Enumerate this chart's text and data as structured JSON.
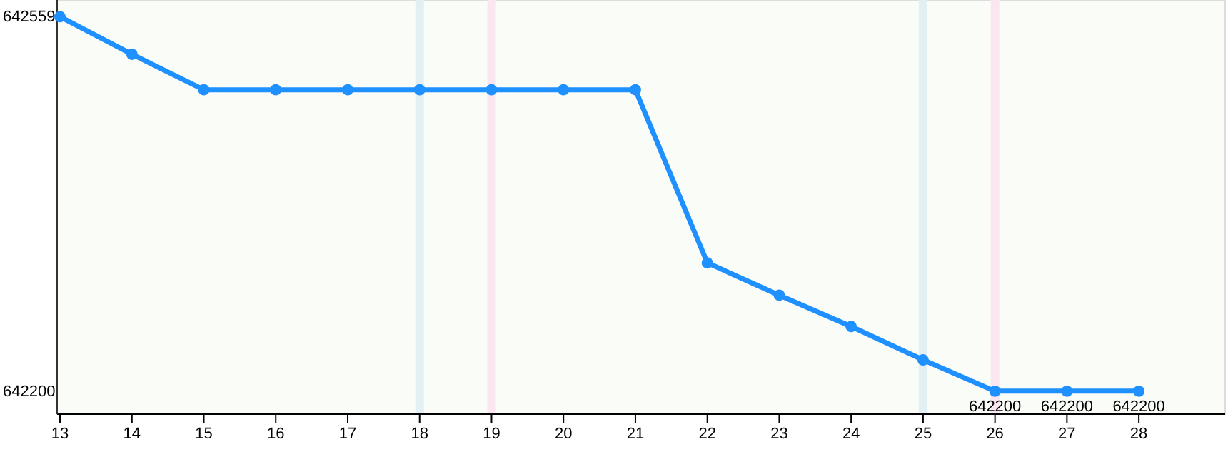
{
  "chart_data": {
    "type": "line",
    "x": [
      13,
      14,
      15,
      16,
      17,
      18,
      19,
      20,
      21,
      22,
      23,
      24,
      25,
      26,
      27,
      28
    ],
    "series": [
      {
        "color": "#1e90ff",
        "values": [
          642559,
          642523,
          642489,
          642489,
          642489,
          642489,
          642489,
          642489,
          642489,
          642323,
          642292,
          642262,
          642230,
          642200,
          642200,
          642200
        ],
        "value_labels": [
          null,
          null,
          null,
          null,
          null,
          null,
          null,
          null,
          null,
          null,
          null,
          null,
          null,
          "642200",
          "642200",
          "642200"
        ]
      }
    ],
    "xlim": [
      12.96,
      29.2
    ],
    "xticks": [
      13,
      14,
      15,
      16,
      17,
      18,
      19,
      20,
      21,
      22,
      23,
      24,
      25,
      26,
      27,
      28
    ],
    "ylim": [
      642178,
      642575
    ],
    "yticks": [
      642559,
      642200
    ],
    "marker": "circle",
    "grid": false,
    "ref_lines": [
      {
        "axis": "x",
        "value": 18,
        "color": "#e3f0f3"
      },
      {
        "axis": "x",
        "value": 19,
        "color": "#fbe6ef"
      },
      {
        "axis": "x",
        "value": 25,
        "color": "#e3f0f3"
      },
      {
        "axis": "x",
        "value": 26,
        "color": "#fbe6ef"
      }
    ]
  }
}
